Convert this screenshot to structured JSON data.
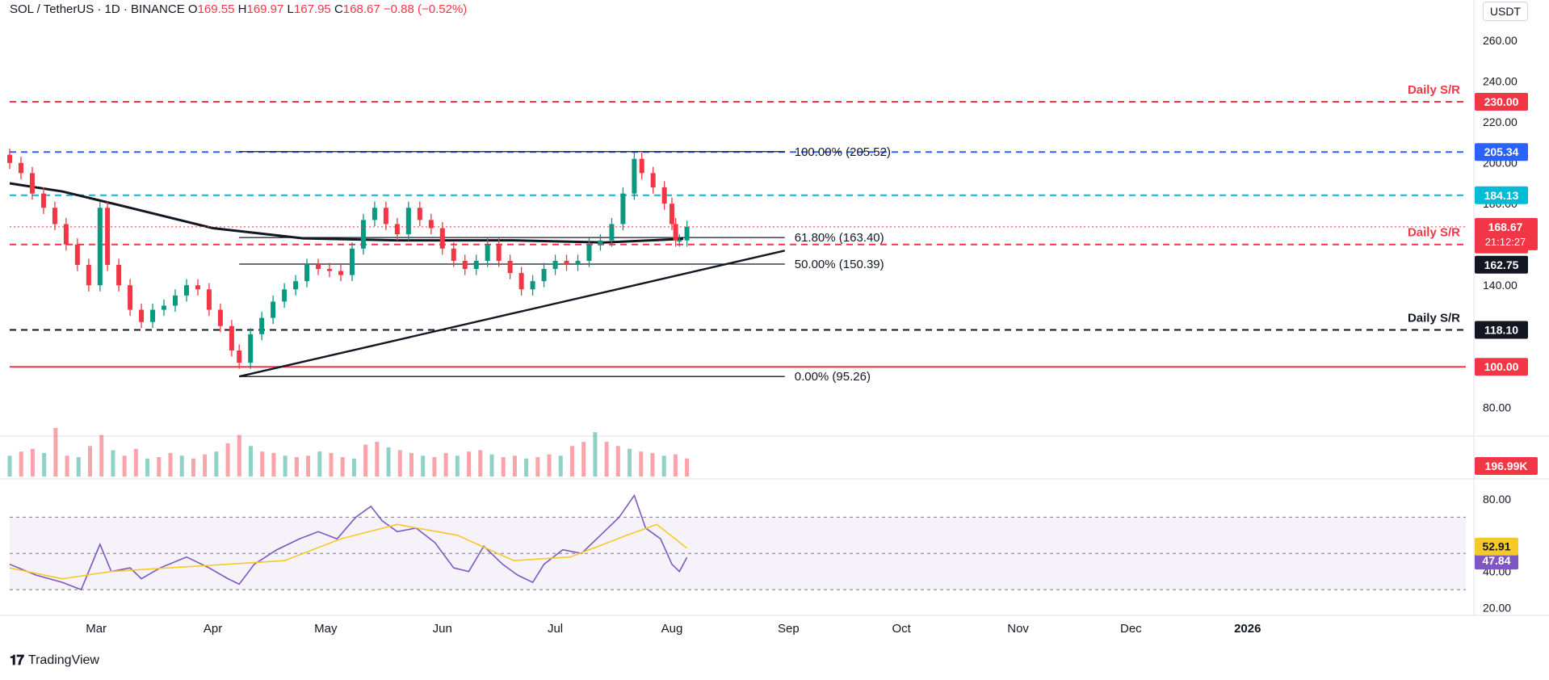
{
  "header": {
    "symbol": "SOL / TetherUS · 1D · BINANCE",
    "o_label": "O",
    "o_value": "169.55",
    "h_label": "H",
    "h_value": "169.97",
    "l_label": "L",
    "l_value": "167.95",
    "c_label": "C",
    "c_value": "168.67",
    "change": "−0.88 (−0.52%)"
  },
  "currency": "USDT",
  "brand": "TradingView",
  "colors": {
    "up": "#089981",
    "down": "#f23645",
    "sma": "#131722",
    "fib": "#131722",
    "rsi": "#7e57c2",
    "rsi_ma": "#f7c928",
    "blue_line": "#2962ff",
    "cyan_line": "#00bcd4"
  },
  "chart_data": [
    {
      "type": "candlestick",
      "title": "SOL / TetherUS · 1D · BINANCE",
      "price_axis": {
        "ticks": [
          "260.00",
          "240.00",
          "220.00",
          "200.00",
          "180.00",
          "160.00",
          "140.00",
          "80.00"
        ],
        "ylim": [
          70,
          268
        ]
      },
      "time_axis": {
        "ticks": [
          "Mar",
          "Apr",
          "May",
          "Jun",
          "Jul",
          "Aug",
          "Sep",
          "Oct",
          "Nov",
          "Dec",
          "2026"
        ],
        "range": [
          "2025-02-06",
          "2026-02-28"
        ]
      },
      "horizontal_levels": [
        {
          "value": 230.0,
          "label": "230.00",
          "annotation": "Daily S/R",
          "color": "#f23645",
          "style": "dashed"
        },
        {
          "value": 205.34,
          "label": "205.34",
          "annotation": "",
          "color": "#2962ff",
          "style": "dashed"
        },
        {
          "value": 184.13,
          "label": "184.13",
          "annotation": "",
          "color": "#00bcd4",
          "style": "dashed"
        },
        {
          "value": 160.0,
          "label": "160.00",
          "annotation": "Daily S/R",
          "color": "#f23645",
          "style": "dashed"
        },
        {
          "value": 118.1,
          "label": "118.10",
          "annotation": "Daily S/R",
          "color": "#131722",
          "style": "dashed"
        },
        {
          "value": 100.0,
          "label": "100.00",
          "annotation": "",
          "color": "#f23645",
          "style": "solid"
        }
      ],
      "last_price": {
        "value": 168.67,
        "label": "168.67",
        "countdown": "21:12:27"
      },
      "sma_200": {
        "value": 162.75,
        "label": "162.75",
        "points": [
          [
            "2025-02-06",
            190
          ],
          [
            "2025-02-20",
            186
          ],
          [
            "2025-03-10",
            178
          ],
          [
            "2025-04-01",
            168
          ],
          [
            "2025-04-25",
            163
          ],
          [
            "2025-05-20",
            162
          ],
          [
            "2025-06-20",
            162
          ],
          [
            "2025-07-14",
            161
          ],
          [
            "2025-08-04",
            162.75
          ]
        ]
      },
      "fibonacci": {
        "start": "2025-04-08",
        "end": "2025-08-31",
        "levels": [
          {
            "ratio": "100.00%",
            "price": 205.52,
            "label": "100.00% (205.52)"
          },
          {
            "ratio": "61.80%",
            "price": 163.4,
            "label": "61.80% (163.40)"
          },
          {
            "ratio": "50.00%",
            "price": 150.39,
            "label": "50.00% (150.39)"
          },
          {
            "ratio": "0.00%",
            "price": 95.26,
            "label": "0.00% (95.26)"
          }
        ]
      },
      "trendline": {
        "from": [
          "2025-04-08",
          95.26
        ],
        "to": [
          "2025-08-31",
          157
        ]
      },
      "closes": [
        [
          "2025-02-06",
          200
        ],
        [
          "2025-02-09",
          195
        ],
        [
          "2025-02-12",
          185
        ],
        [
          "2025-02-15",
          178
        ],
        [
          "2025-02-18",
          170
        ],
        [
          "2025-02-21",
          160
        ],
        [
          "2025-02-24",
          150
        ],
        [
          "2025-02-27",
          140
        ],
        [
          "2025-03-02",
          178
        ],
        [
          "2025-03-04",
          150
        ],
        [
          "2025-03-07",
          140
        ],
        [
          "2025-03-10",
          128
        ],
        [
          "2025-03-13",
          122
        ],
        [
          "2025-03-16",
          128
        ],
        [
          "2025-03-19",
          130
        ],
        [
          "2025-03-22",
          135
        ],
        [
          "2025-03-25",
          140
        ],
        [
          "2025-03-28",
          138
        ],
        [
          "2025-03-31",
          128
        ],
        [
          "2025-04-03",
          120
        ],
        [
          "2025-04-06",
          108
        ],
        [
          "2025-04-08",
          102
        ],
        [
          "2025-04-11",
          116
        ],
        [
          "2025-04-14",
          124
        ],
        [
          "2025-04-17",
          132
        ],
        [
          "2025-04-20",
          138
        ],
        [
          "2025-04-23",
          142
        ],
        [
          "2025-04-26",
          150
        ],
        [
          "2025-04-29",
          148
        ],
        [
          "2025-05-02",
          147
        ],
        [
          "2025-05-05",
          145
        ],
        [
          "2025-05-08",
          158
        ],
        [
          "2025-05-11",
          172
        ],
        [
          "2025-05-14",
          178
        ],
        [
          "2025-05-17",
          170
        ],
        [
          "2025-05-20",
          165
        ],
        [
          "2025-05-23",
          178
        ],
        [
          "2025-05-26",
          172
        ],
        [
          "2025-05-29",
          168
        ],
        [
          "2025-06-01",
          158
        ],
        [
          "2025-06-04",
          152
        ],
        [
          "2025-06-07",
          148
        ],
        [
          "2025-06-10",
          152
        ],
        [
          "2025-06-13",
          160
        ],
        [
          "2025-06-16",
          152
        ],
        [
          "2025-06-19",
          146
        ],
        [
          "2025-06-22",
          138
        ],
        [
          "2025-06-25",
          142
        ],
        [
          "2025-06-28",
          148
        ],
        [
          "2025-07-01",
          152
        ],
        [
          "2025-07-04",
          150
        ],
        [
          "2025-07-07",
          152
        ],
        [
          "2025-07-10",
          160
        ],
        [
          "2025-07-13",
          162
        ],
        [
          "2025-07-16",
          170
        ],
        [
          "2025-07-19",
          185
        ],
        [
          "2025-07-22",
          202
        ],
        [
          "2025-07-24",
          195
        ],
        [
          "2025-07-27",
          188
        ],
        [
          "2025-07-30",
          180
        ],
        [
          "2025-08-01",
          170
        ],
        [
          "2025-08-02",
          162
        ],
        [
          "2025-08-03",
          162
        ],
        [
          "2025-08-05",
          168.67
        ]
      ],
      "volume": {
        "last_label": "196.99K",
        "values": [
          30,
          36,
          40,
          34,
          70,
          30,
          28,
          44,
          60,
          38,
          30,
          40,
          26,
          28,
          34,
          30,
          26,
          32,
          36,
          48,
          60,
          44,
          36,
          34,
          30,
          28,
          30,
          36,
          34,
          28,
          26,
          46,
          50,
          42,
          38,
          34,
          30,
          28,
          34,
          30,
          36,
          38,
          32,
          28,
          30,
          26,
          28,
          32,
          30,
          44,
          50,
          64,
          50,
          44,
          40,
          36,
          34,
          30,
          32,
          26
        ]
      }
    },
    {
      "type": "line",
      "title": "RSI",
      "ticks": [
        "80.00",
        "40.00",
        "20.00"
      ],
      "ylim": [
        18,
        88
      ],
      "bands": {
        "upper": 70,
        "middle": 50,
        "lower": 30
      },
      "series": [
        {
          "name": "",
          "last_label": "47.84",
          "values": [
            [
              "2025-02-06",
              44
            ],
            [
              "2025-02-13",
              38
            ],
            [
              "2025-02-20",
              34
            ],
            [
              "2025-02-25",
              30
            ],
            [
              "2025-03-02",
              55
            ],
            [
              "2025-03-05",
              40
            ],
            [
              "2025-03-10",
              42
            ],
            [
              "2025-03-13",
              36
            ],
            [
              "2025-03-18",
              42
            ],
            [
              "2025-03-25",
              48
            ],
            [
              "2025-03-31",
              42
            ],
            [
              "2025-04-05",
              36
            ],
            [
              "2025-04-08",
              33
            ],
            [
              "2025-04-12",
              44
            ],
            [
              "2025-04-18",
              52
            ],
            [
              "2025-04-24",
              58
            ],
            [
              "2025-04-29",
              62
            ],
            [
              "2025-05-04",
              58
            ],
            [
              "2025-05-09",
              70
            ],
            [
              "2025-05-13",
              76
            ],
            [
              "2025-05-16",
              68
            ],
            [
              "2025-05-20",
              62
            ],
            [
              "2025-05-25",
              64
            ],
            [
              "2025-05-30",
              56
            ],
            [
              "2025-06-04",
              42
            ],
            [
              "2025-06-08",
              40
            ],
            [
              "2025-06-12",
              54
            ],
            [
              "2025-06-17",
              44
            ],
            [
              "2025-06-21",
              38
            ],
            [
              "2025-06-25",
              34
            ],
            [
              "2025-06-28",
              44
            ],
            [
              "2025-07-03",
              52
            ],
            [
              "2025-07-08",
              50
            ],
            [
              "2025-07-13",
              60
            ],
            [
              "2025-07-18",
              70
            ],
            [
              "2025-07-22",
              82
            ],
            [
              "2025-07-25",
              64
            ],
            [
              "2025-07-29",
              58
            ],
            [
              "2025-08-01",
              44
            ],
            [
              "2025-08-03",
              40
            ],
            [
              "2025-08-05",
              47.84
            ]
          ]
        },
        {
          "name": "",
          "last_label": "52.91",
          "values": [
            [
              "2025-02-06",
              42
            ],
            [
              "2025-02-20",
              36
            ],
            [
              "2025-03-05",
              40
            ],
            [
              "2025-03-20",
              42
            ],
            [
              "2025-04-05",
              44
            ],
            [
              "2025-04-20",
              46
            ],
            [
              "2025-05-05",
              58
            ],
            [
              "2025-05-20",
              66
            ],
            [
              "2025-06-05",
              60
            ],
            [
              "2025-06-20",
              46
            ],
            [
              "2025-07-05",
              48
            ],
            [
              "2025-07-20",
              60
            ],
            [
              "2025-07-28",
              66
            ],
            [
              "2025-08-05",
              52.91
            ]
          ]
        }
      ]
    }
  ]
}
